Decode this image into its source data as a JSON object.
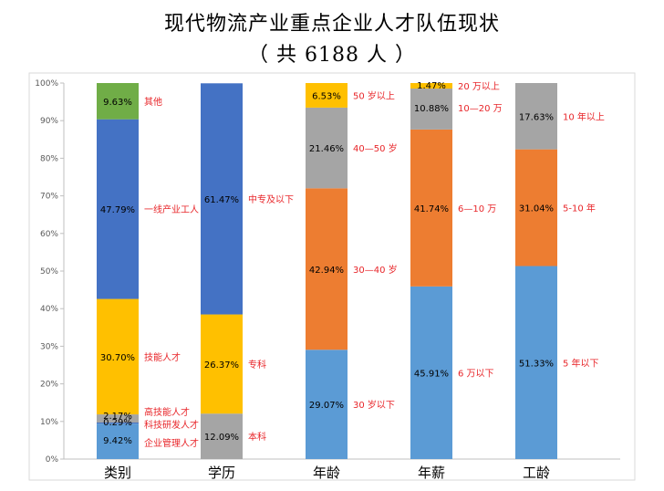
{
  "title": "现代物流产业重点企业人才队伍现状",
  "subtitle": "（ 共 6188 人 ）",
  "chart_data": {
    "type": "bar",
    "stacked": true,
    "ylim": [
      0,
      100
    ],
    "yticks": [
      "0%",
      "10%",
      "20%",
      "30%",
      "40%",
      "50%",
      "60%",
      "70%",
      "80%",
      "90%",
      "100%"
    ],
    "categories": [
      "类别",
      "学历",
      "年龄",
      "年薪",
      "工龄"
    ],
    "bars": [
      {
        "category": "类别",
        "segments": [
          {
            "value": 9.42,
            "label": "9.42%",
            "annotation": "企业管理人才",
            "color": "#5b9bd5"
          },
          {
            "value": 0.29,
            "label": "0.29%",
            "annotation": "科技研发人才",
            "color": "#4472c4"
          },
          {
            "value": 2.17,
            "label": "2.17%",
            "annotation": "高技能人才",
            "color": "#a5a5a5"
          },
          {
            "value": 30.7,
            "label": "30.70%",
            "annotation": "技能人才",
            "color": "#ffc000"
          },
          {
            "value": 47.79,
            "label": "47.79%",
            "annotation": "一线产业工人",
            "color": "#4472c4"
          },
          {
            "value": 9.63,
            "label": "9.63%",
            "annotation": "其他",
            "color": "#70ad47"
          }
        ]
      },
      {
        "category": "学历",
        "segments": [
          {
            "value": 12.09,
            "label": "12.09%",
            "annotation": "本科",
            "color": "#a5a5a5"
          },
          {
            "value": 26.37,
            "label": "26.37%",
            "annotation": "专科",
            "color": "#ffc000"
          },
          {
            "value": 61.47,
            "label": "61.47%",
            "annotation": "中专及以下",
            "color": "#4472c4"
          }
        ]
      },
      {
        "category": "年龄",
        "segments": [
          {
            "value": 29.07,
            "label": "29.07%",
            "annotation": "30 岁以下",
            "color": "#5b9bd5"
          },
          {
            "value": 42.94,
            "label": "42.94%",
            "annotation": "30—40 岁",
            "color": "#ed7d31"
          },
          {
            "value": 21.46,
            "label": "21.46%",
            "annotation": "40—50 岁",
            "color": "#a5a5a5"
          },
          {
            "value": 6.53,
            "label": "6.53%",
            "annotation": "50 岁以上",
            "color": "#ffc000"
          }
        ]
      },
      {
        "category": "年薪",
        "segments": [
          {
            "value": 45.91,
            "label": "45.91%",
            "annotation": "6 万以下",
            "color": "#5b9bd5"
          },
          {
            "value": 41.74,
            "label": "41.74%",
            "annotation": "6—10 万",
            "color": "#ed7d31"
          },
          {
            "value": 10.88,
            "label": "10.88%",
            "annotation": "10—20 万",
            "color": "#a5a5a5"
          },
          {
            "value": 1.47,
            "label": "1.47%",
            "annotation": "20 万以上",
            "color": "#ffc000"
          }
        ]
      },
      {
        "category": "工龄",
        "segments": [
          {
            "value": 51.33,
            "label": "51.33%",
            "annotation": "5 年以下",
            "color": "#5b9bd5"
          },
          {
            "value": 31.04,
            "label": "31.04%",
            "annotation": "5-10 年",
            "color": "#ed7d31"
          },
          {
            "value": 17.63,
            "label": "17.63%",
            "annotation": "10 年以上",
            "color": "#a5a5a5"
          }
        ]
      }
    ],
    "grid": false,
    "legend": "none"
  }
}
